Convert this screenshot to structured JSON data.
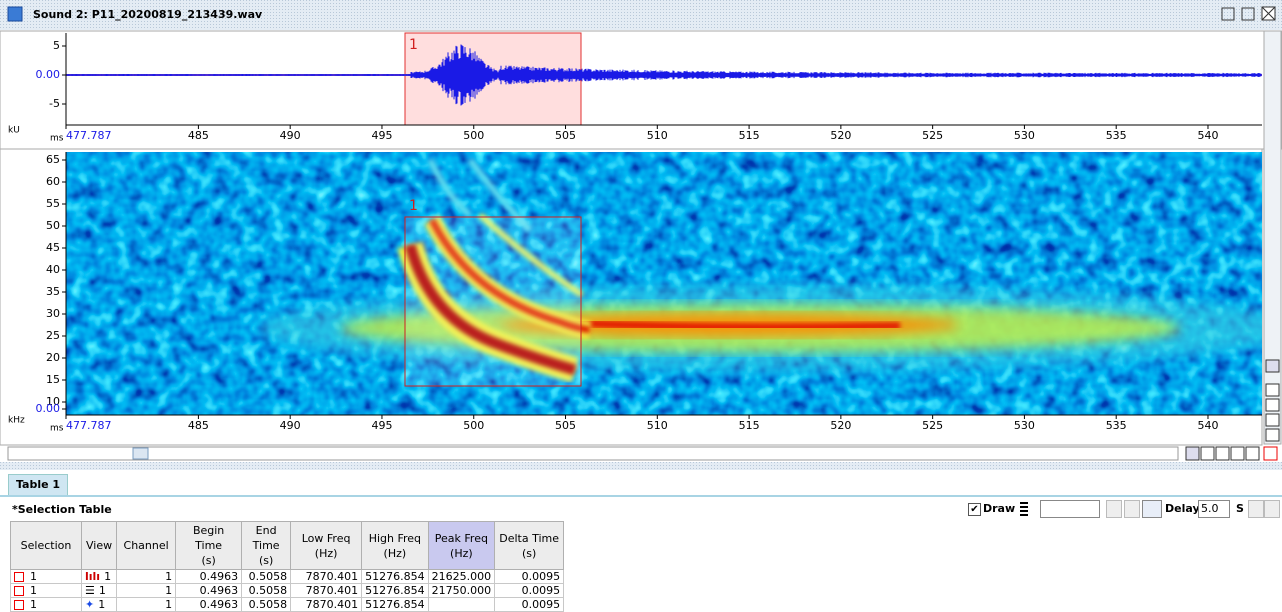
{
  "window": {
    "title": "Sound 2: P11_20200819_213439.wav"
  },
  "waveform": {
    "selection_label": "1",
    "y_unit": "kU",
    "y_ticks": [
      "5",
      "0.00",
      "-5"
    ],
    "x_unit": "ms",
    "x_ticks": [
      "477.787",
      "485",
      "490",
      "495",
      "500",
      "505",
      "510",
      "515",
      "520",
      "525",
      "530",
      "535",
      "540"
    ]
  },
  "spectrogram": {
    "selection_label": "1",
    "y_unit": "kHz",
    "y_ticks": [
      "65",
      "60",
      "55",
      "50",
      "45",
      "40",
      "35",
      "30",
      "25",
      "20",
      "15",
      "10",
      "0.00"
    ],
    "x_unit": "ms",
    "x_ticks": [
      "477.787",
      "485",
      "490",
      "495",
      "500",
      "505",
      "510",
      "515",
      "520",
      "525",
      "530",
      "535",
      "540"
    ]
  },
  "table": {
    "tab": "Table 1",
    "title": "*Selection Table",
    "draw_label": "Draw",
    "delay_label": "Delay:",
    "delay_value": "5.0",
    "delay_unit": "S",
    "columns": [
      [
        "Selection"
      ],
      [
        "View"
      ],
      [
        "Channel"
      ],
      [
        "Begin Time",
        "(s)"
      ],
      [
        "End Time",
        "(s)"
      ],
      [
        "Low Freq",
        "(Hz)"
      ],
      [
        "High Freq",
        "(Hz)"
      ],
      [
        "Peak Freq",
        "(Hz)"
      ],
      [
        "Delta Time",
        "(s)"
      ]
    ],
    "rows": [
      [
        "1",
        "1",
        "1",
        "0.4963",
        "0.5058",
        "7870.401",
        "51276.854",
        "21625.000",
        "0.0095"
      ],
      [
        "1",
        "1",
        "1",
        "0.4963",
        "0.5058",
        "7870.401",
        "51276.854",
        "21750.000",
        "0.0095"
      ],
      [
        "1",
        "1",
        "1",
        "0.4963",
        "0.5058",
        "7870.401",
        "51276.854",
        null,
        "0.0095"
      ]
    ]
  }
}
